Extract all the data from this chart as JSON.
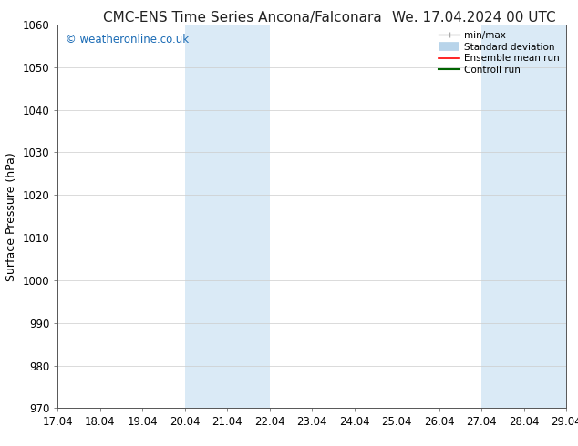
{
  "title_left": "CMC-ENS Time Series Ancona/Falconara",
  "title_right": "We. 17.04.2024 00 UTC",
  "ylabel": "Surface Pressure (hPa)",
  "xlim_start": 17.04,
  "xlim_end": 29.04,
  "ylim_bottom": 970,
  "ylim_top": 1060,
  "yticks": [
    970,
    980,
    990,
    1000,
    1010,
    1020,
    1030,
    1040,
    1050,
    1060
  ],
  "xtick_labels": [
    "17.04",
    "18.04",
    "19.04",
    "20.04",
    "21.04",
    "22.04",
    "23.04",
    "24.04",
    "25.04",
    "26.04",
    "27.04",
    "28.04",
    "29.04"
  ],
  "xtick_positions": [
    17.04,
    18.04,
    19.04,
    20.04,
    21.04,
    22.04,
    23.04,
    24.04,
    25.04,
    26.04,
    27.04,
    28.04,
    29.04
  ],
  "shaded_regions": [
    {
      "x_start": 20.04,
      "x_end": 22.04
    },
    {
      "x_start": 27.04,
      "x_end": 29.04
    }
  ],
  "shaded_color": "#daeaf6",
  "watermark_text": "© weatheronline.co.uk",
  "watermark_color": "#1a6bb5",
  "bg_color": "#ffffff",
  "grid_color": "#cccccc",
  "title_fontsize": 11,
  "tick_fontsize": 8.5,
  "ylabel_fontsize": 9,
  "watermark_fontsize": 8.5
}
